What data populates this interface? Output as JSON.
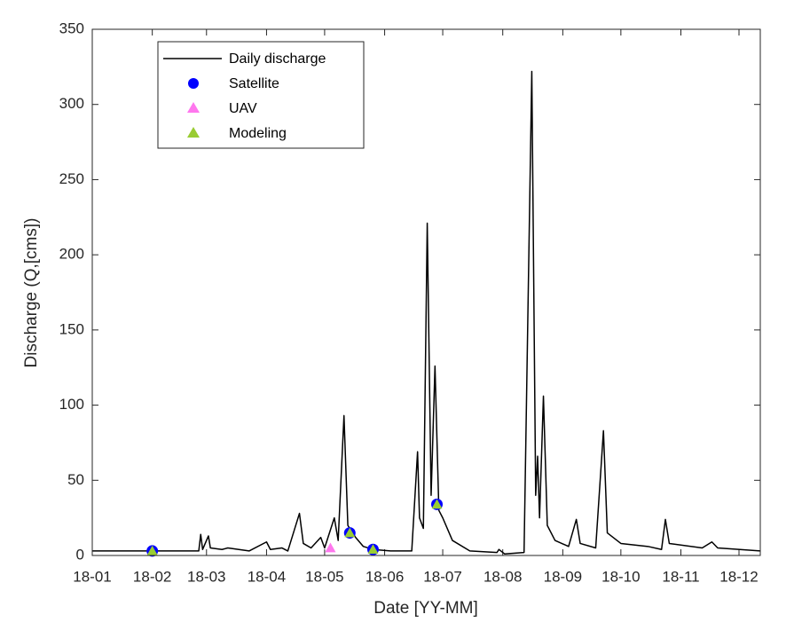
{
  "chart_data": {
    "type": "line",
    "xlabel": "Date [YY-MM]",
    "ylabel": "Discharge (Q,[cms])",
    "xlim": [
      0,
      345
    ],
    "xticks": [
      {
        "value": 0,
        "label": "18-01"
      },
      {
        "value": 31,
        "label": "18-02"
      },
      {
        "value": 59,
        "label": "18-03"
      },
      {
        "value": 90,
        "label": "18-04"
      },
      {
        "value": 120,
        "label": "18-05"
      },
      {
        "value": 151,
        "label": "18-06"
      },
      {
        "value": 181,
        "label": "18-07"
      },
      {
        "value": 212,
        "label": "18-08"
      },
      {
        "value": 243,
        "label": "18-09"
      },
      {
        "value": 273,
        "label": "18-10"
      },
      {
        "value": 304,
        "label": "18-11"
      },
      {
        "value": 334,
        "label": "18-12"
      }
    ],
    "ylim": [
      0,
      350
    ],
    "yticks": [
      0,
      50,
      100,
      150,
      200,
      250,
      300,
      350
    ],
    "legend": "upper left",
    "series": [
      {
        "name": "Daily discharge",
        "type": "line",
        "color": "#000000",
        "x": [
          0,
          55,
          56,
          57,
          60,
          61,
          67,
          70,
          81,
          90,
          92,
          98,
          101,
          107,
          109,
          113,
          118,
          120,
          125,
          127,
          130,
          132,
          136,
          140,
          145,
          154,
          165,
          168,
          169,
          171,
          173,
          175,
          177,
          179,
          181,
          186,
          195,
          209,
          210,
          213,
          223,
          227,
          229,
          230,
          231,
          233,
          235,
          239,
          246,
          250,
          252,
          260,
          264,
          266,
          273,
          287,
          294,
          296,
          298,
          315,
          320,
          323,
          345
        ],
        "values": [
          3,
          3,
          14,
          4,
          13,
          5,
          4,
          5,
          3,
          9,
          4,
          5,
          3,
          28,
          8,
          5,
          12,
          5,
          25,
          10,
          93,
          20,
          12,
          6,
          4,
          3,
          3,
          69,
          25,
          18,
          221,
          40,
          126,
          30,
          25,
          10,
          3,
          2,
          4,
          1,
          2,
          322,
          40,
          66,
          25,
          106,
          20,
          10,
          6,
          24,
          8,
          5,
          83,
          15,
          8,
          6,
          4,
          24,
          8,
          5,
          9,
          5,
          3
        ]
      },
      {
        "name": "Satellite",
        "type": "scatter",
        "marker": "circle",
        "color": "#0000ff",
        "x": [
          31,
          133,
          145,
          178
        ],
        "values": [
          3,
          15,
          4,
          34
        ]
      },
      {
        "name": "UAV",
        "type": "scatter",
        "marker": "triangle",
        "color": "#ff77ee",
        "x": [
          123
        ],
        "values": [
          5
        ]
      },
      {
        "name": "Modeling",
        "type": "scatter",
        "marker": "triangle",
        "color": "#99cc33",
        "x": [
          31,
          133,
          145,
          178
        ],
        "values": [
          3,
          15,
          4,
          34
        ]
      }
    ]
  }
}
